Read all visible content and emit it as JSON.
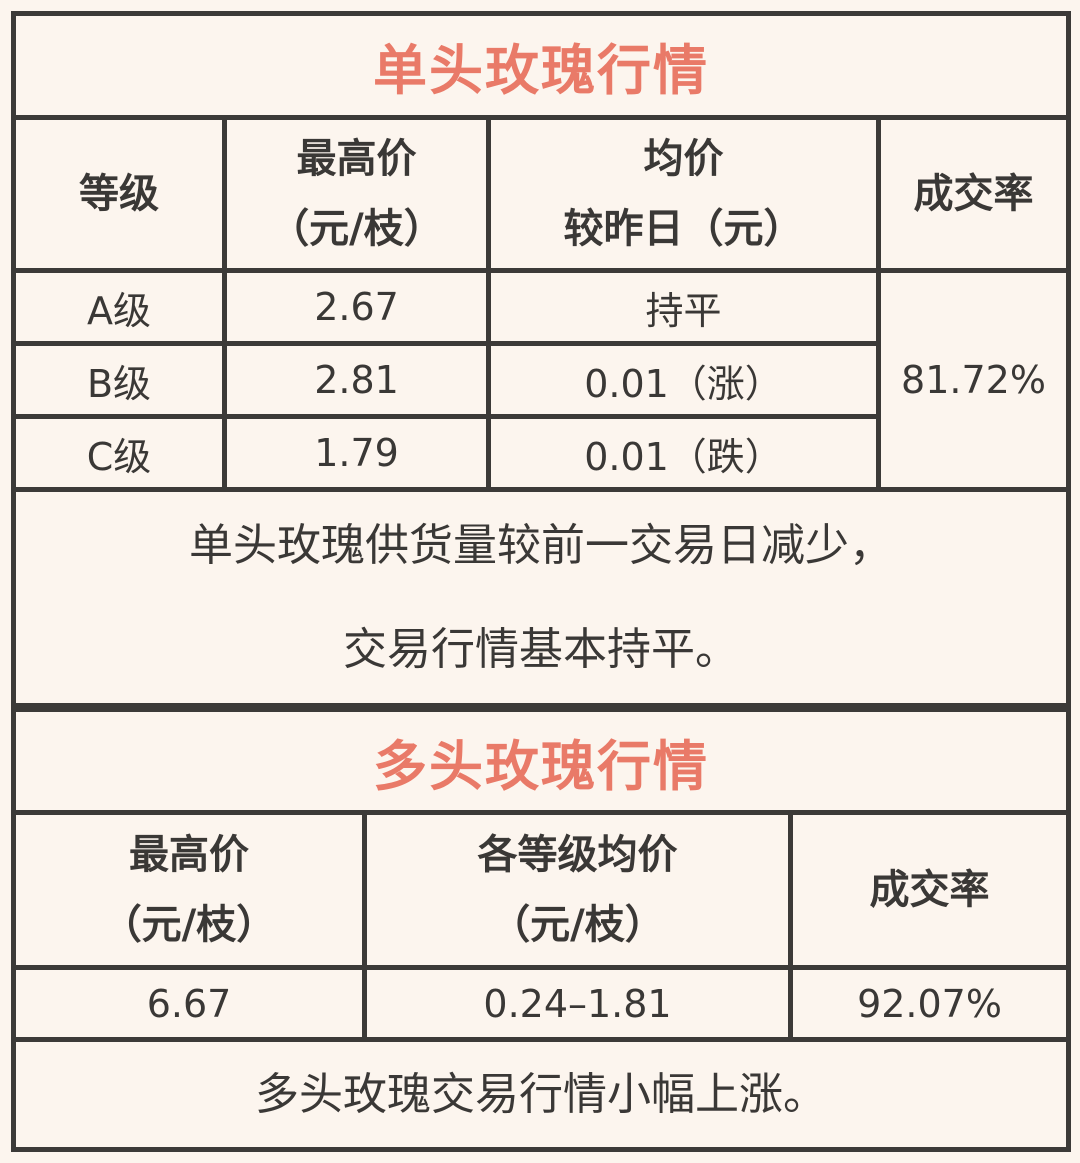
{
  "single": {
    "title": "单头玫瑰行情",
    "headers": {
      "grade": "等级",
      "max_price_1": "最高价",
      "max_price_2": "（元/枝）",
      "avg_1": "均价",
      "avg_2": "较昨日（元）",
      "rate": "成交率"
    },
    "rows": [
      {
        "grade": "A级",
        "max": "2.67",
        "change": "持平"
      },
      {
        "grade": "B级",
        "max": "2.81",
        "change": "0.01（涨）"
      },
      {
        "grade": "C级",
        "max": "1.79",
        "change": "0.01（跌）"
      }
    ],
    "rate": "81.72%",
    "note_1": "单头玫瑰供货量较前一交易日减少，",
    "note_2": "交易行情基本持平。"
  },
  "multi": {
    "title": "多头玫瑰行情",
    "headers": {
      "max_1": "最高价",
      "max_2": "（元/枝）",
      "avg_1": "各等级均价",
      "avg_2": "（元/枝）",
      "rate": "成交率"
    },
    "row": {
      "max": "6.67",
      "avg": "0.24–1.81",
      "rate": "92.07%"
    },
    "note": "多头玫瑰交易行情小幅上涨。"
  },
  "colors": {
    "title": "#e97a68",
    "border": "#3c3a38",
    "background": "#fcf5ee"
  }
}
